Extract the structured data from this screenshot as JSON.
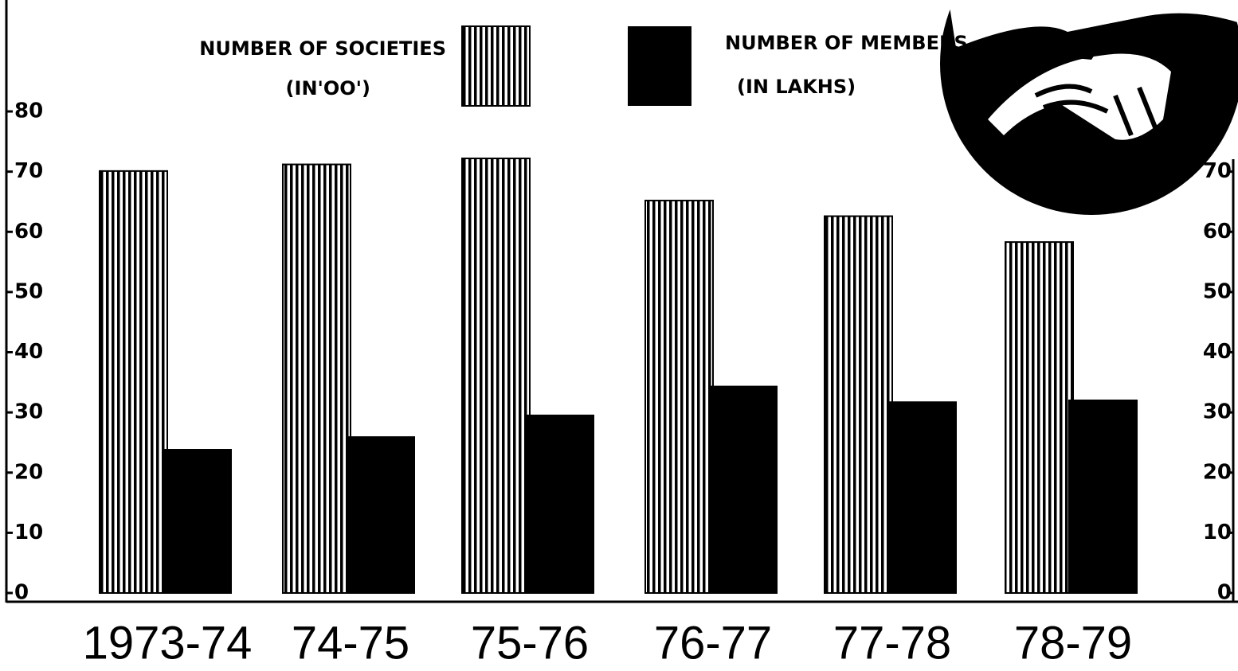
{
  "chart_data": {
    "type": "bar",
    "categories": [
      "1973-74",
      "74-75",
      "75-76",
      "76-77",
      "77-78",
      "78-79"
    ],
    "series": [
      {
        "name": "NUMBER OF SOCIETIES",
        "unit": "(IN'OO')",
        "color": "#000000",
        "pattern": "vertical-stripes",
        "values": [
          70.1,
          71.2,
          72.2,
          65.2,
          62.6,
          58.3
        ]
      },
      {
        "name": "NUMBER OF MEMBERS",
        "unit": "(IN LAKHS)",
        "color": "#000000",
        "pattern": "solid",
        "values": [
          23.8,
          25.9,
          29.5,
          34.3,
          31.7,
          32.0
        ]
      }
    ],
    "ylim": [
      0,
      80
    ],
    "yticks": [
      0,
      10,
      20,
      30,
      40,
      50,
      60,
      70,
      80
    ],
    "y2lim": [
      0,
      80
    ],
    "y2ticks": [
      0,
      10,
      20,
      30,
      40,
      50,
      60,
      70
    ],
    "grid": false
  }
}
